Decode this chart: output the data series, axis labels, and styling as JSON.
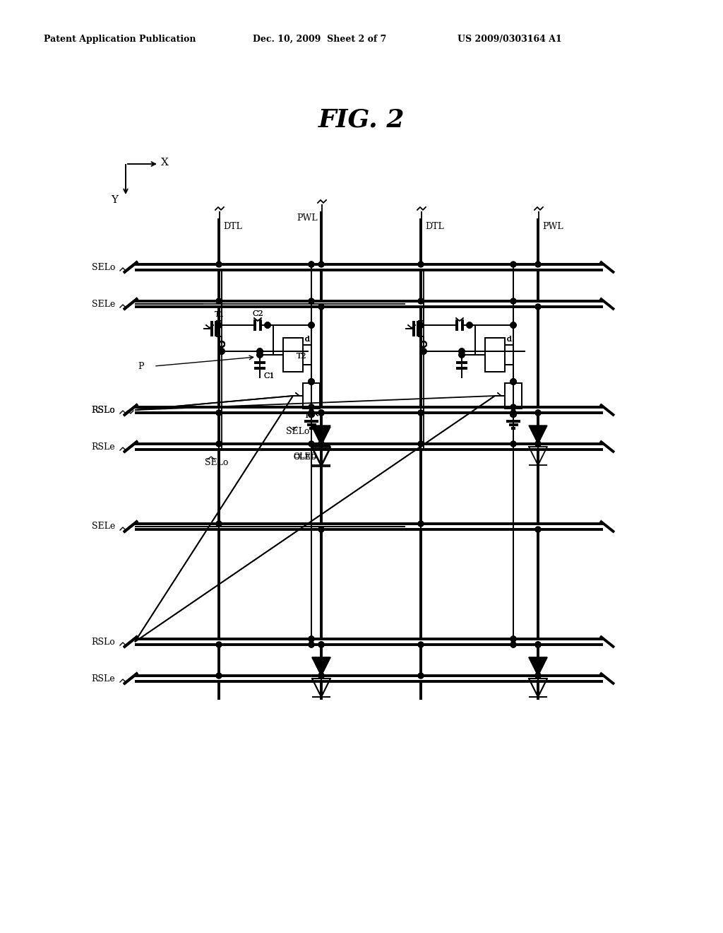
{
  "title": "FIG. 2",
  "header_left": "Patent Application Publication",
  "header_center": "Dec. 10, 2009  Sheet 2 of 7",
  "header_right": "US 2009/0303164 A1",
  "bg_color": "#ffffff",
  "line_color": "#000000"
}
